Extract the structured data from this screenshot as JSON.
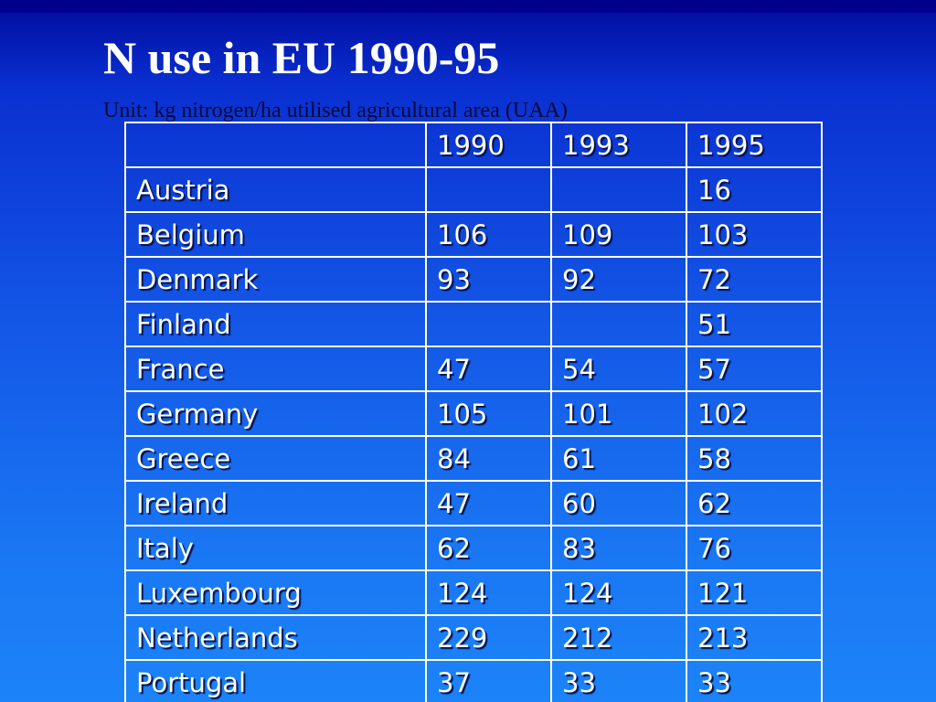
{
  "title": "N use in EU 1990-95",
  "subtitle": "Unit: kg nitrogen/ha utilised agricultural area (UAA)",
  "table": {
    "headers": [
      "",
      "1990",
      "1993",
      "1995"
    ],
    "rows": [
      [
        "Austria",
        "",
        "",
        "16"
      ],
      [
        "Belgium",
        "106",
        "109",
        "103"
      ],
      [
        "Denmark",
        "93",
        "92",
        "72"
      ],
      [
        "Finland",
        "",
        "",
        "51"
      ],
      [
        "France",
        "47",
        "54",
        "57"
      ],
      [
        "Germany",
        "105",
        "101",
        "102"
      ],
      [
        "Greece",
        "84",
        "61",
        "58"
      ],
      [
        "Ireland",
        "47",
        "60",
        "62"
      ],
      [
        "Italy",
        "62",
        "83",
        "76"
      ],
      [
        "Luxembourg",
        "124",
        "124",
        "121"
      ],
      [
        "Netherlands",
        "229",
        "212",
        "213"
      ],
      [
        "Portugal",
        "37",
        "33",
        "33"
      ]
    ]
  },
  "colors": {
    "background_top": "#000a9c",
    "background_bottom": "#1c83f8",
    "title": "#ffffff",
    "subtitle": "#0a0a3a",
    "table_border": "#ffffff",
    "table_text": "#ffffff"
  }
}
